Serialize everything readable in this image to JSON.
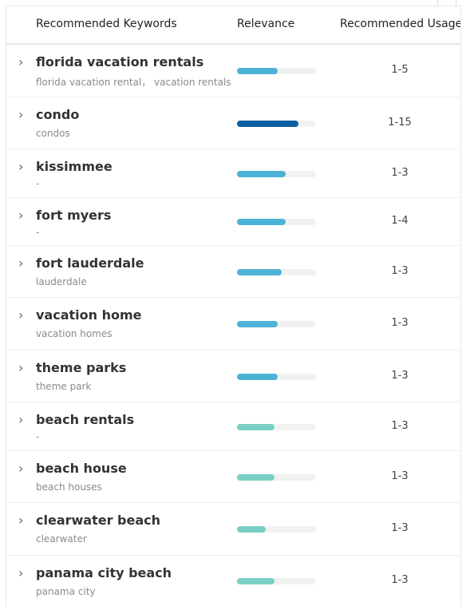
{
  "header": {
    "keyword": "Recommended Keywords",
    "relevance": "Relevance",
    "usage": "Recommended Usage"
  },
  "colors": {
    "blue": "#4db3d6",
    "dark_blue": "#0d5ea3",
    "teal": "#79cfc4",
    "track": "#f1f1f1"
  },
  "rows": [
    {
      "keyword": "florida vacation rentals",
      "sub": "florida vacation rental，  vacation rentals",
      "usage": "1-5",
      "relevance": 0.52,
      "color": "#4db3d6"
    },
    {
      "keyword": "condo",
      "sub": "condos",
      "usage": "1-15",
      "relevance": 0.78,
      "color": "#0d5ea3"
    },
    {
      "keyword": "kissimmee",
      "sub": "-",
      "usage": "1-3",
      "relevance": 0.62,
      "color": "#4db3d6"
    },
    {
      "keyword": "fort myers",
      "sub": "-",
      "usage": "1-4",
      "relevance": 0.62,
      "color": "#4db3d6"
    },
    {
      "keyword": "fort lauderdale",
      "sub": "lauderdale",
      "usage": "1-3",
      "relevance": 0.57,
      "color": "#4db3d6"
    },
    {
      "keyword": "vacation home",
      "sub": "vacation homes",
      "usage": "1-3",
      "relevance": 0.52,
      "color": "#4db3d6"
    },
    {
      "keyword": "theme parks",
      "sub": "theme park",
      "usage": "1-3",
      "relevance": 0.52,
      "color": "#4db3d6"
    },
    {
      "keyword": "beach rentals",
      "sub": "-",
      "usage": "1-3",
      "relevance": 0.47,
      "color": "#79cfc4"
    },
    {
      "keyword": "beach house",
      "sub": "beach houses",
      "usage": "1-3",
      "relevance": 0.47,
      "color": "#79cfc4"
    },
    {
      "keyword": "clearwater beach",
      "sub": "clearwater",
      "usage": "1-3",
      "relevance": 0.36,
      "color": "#79cfc4"
    },
    {
      "keyword": "panama city beach",
      "sub": "panama city",
      "usage": "1-3",
      "relevance": 0.47,
      "color": "#79cfc4"
    }
  ]
}
